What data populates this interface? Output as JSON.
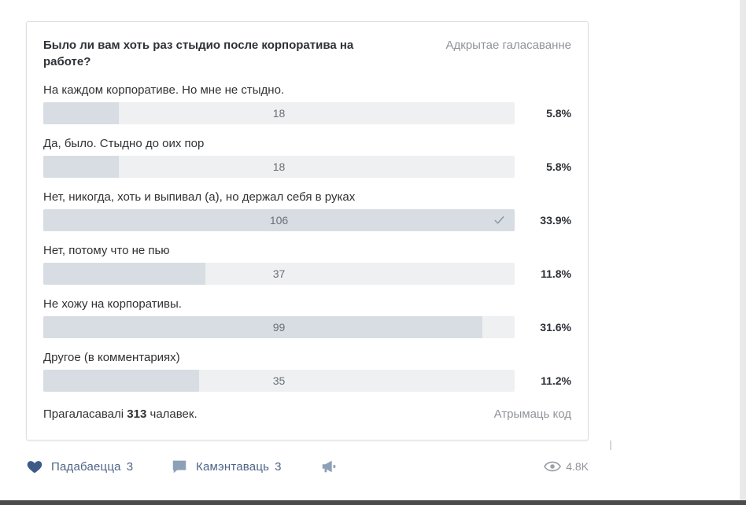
{
  "poll": {
    "question": "Было ли вам хоть раз стыдио после корпоратива на работе?",
    "type": "Адкрытае галасаванне",
    "answers": [
      {
        "label": "На каждом корпоративе. Но мне не стыдно.",
        "count": "18",
        "percent": "5.8%",
        "share": 0.161,
        "checked": false
      },
      {
        "label": "Да, было. Стыдно до оих пор",
        "count": "18",
        "percent": "5.8%",
        "share": 0.161,
        "checked": false
      },
      {
        "label": "Нет, никогда, хоть и выпивал (а), но держал себя в руках",
        "count": "106",
        "percent": "33.9%",
        "share": 1.0,
        "checked": true
      },
      {
        "label": "Нет, потому что не пью",
        "count": "37",
        "percent": "11.8%",
        "share": 0.344,
        "checked": false
      },
      {
        "label": "Не хожу на корпоративы.",
        "count": "99",
        "percent": "31.6%",
        "share": 0.932,
        "checked": false
      },
      {
        "label": "Другое (в комментариях)",
        "count": "35",
        "percent": "11.2%",
        "share": 0.331,
        "checked": false
      }
    ],
    "voted_prefix": "Прагаласавалі",
    "voted_count": "313",
    "voted_suffix": "чалавек.",
    "get_code": "Атрымаць код"
  },
  "footer": {
    "like_label": "Падабаецца",
    "like_count": "3",
    "comment_label": "Камэнтаваць",
    "comment_count": "3",
    "views": "4.8K"
  },
  "colors": {
    "bar_bg": "#eef0f2",
    "bar_fill": "#d8dde3",
    "action_blue": "#4d6587",
    "icon_blue": "#3e5b87",
    "muted": "#8f9399"
  }
}
